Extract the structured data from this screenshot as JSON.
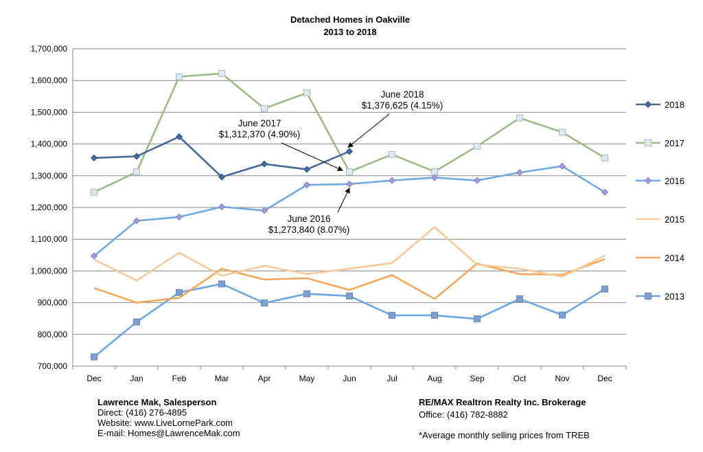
{
  "chart_data": {
    "type": "line",
    "title": "Detached Homes in Oakville",
    "subtitle": "2013 to 2018",
    "xlabel": "",
    "ylabel": "",
    "categories": [
      "Dec",
      "Jan",
      "Feb",
      "Mar",
      "Apr",
      "May",
      "Jun",
      "Jul",
      "Aug",
      "Sep",
      "Oct",
      "Nov",
      "Dec"
    ],
    "ylim": [
      700000,
      1700000
    ],
    "yticks": [
      700000,
      800000,
      900000,
      1000000,
      1100000,
      1200000,
      1300000,
      1400000,
      1500000,
      1600000,
      1700000
    ],
    "ytick_labels": [
      "700,000",
      "800,000",
      "900,000",
      "1,000,000",
      "1,100,000",
      "1,200,000",
      "1,300,000",
      "1,400,000",
      "1,500,000",
      "1,600,000",
      "1,700,000"
    ],
    "grid": "horizontal",
    "legend_position": "right",
    "series": [
      {
        "name": "2018",
        "color": "#44699a",
        "marker": "diamond",
        "values": [
          1356000,
          1361000,
          1423000,
          1296000,
          1337000,
          1320000,
          1376625,
          null,
          null,
          null,
          null,
          null,
          null
        ]
      },
      {
        "name": "2017",
        "color": "#9bbb84",
        "marker": "square-light",
        "values": [
          1248000,
          1312000,
          1612000,
          1622000,
          1512000,
          1561000,
          1312370,
          1367000,
          1313000,
          1393000,
          1482000,
          1437000,
          1356000
        ]
      },
      {
        "name": "2016",
        "color": "#6fa9e4",
        "marker": "diamond-lavender",
        "values": [
          1047000,
          1158000,
          1170000,
          1202000,
          1190000,
          1271000,
          1273840,
          1285000,
          1294000,
          1285000,
          1310000,
          1330000,
          1248000
        ]
      },
      {
        "name": "2015",
        "color": "#f8c99a",
        "marker": "none",
        "values": [
          1036000,
          970000,
          1057000,
          985000,
          1016000,
          990000,
          1007000,
          1025000,
          1138000,
          1020000,
          1007000,
          982000,
          1048000
        ]
      },
      {
        "name": "2014",
        "color": "#f6a75a",
        "marker": "none",
        "values": [
          946000,
          900000,
          915000,
          1007000,
          973000,
          977000,
          940000,
          987000,
          912000,
          1023000,
          990000,
          988000,
          1037000
        ]
      },
      {
        "name": "2013",
        "color": "#6aa6e2",
        "marker": "square",
        "values": [
          729000,
          839000,
          932000,
          959000,
          899000,
          928000,
          921000,
          860000,
          860000,
          849000,
          912000,
          861000,
          943000
        ]
      }
    ],
    "annotations": [
      {
        "line1": "June 2018",
        "line2": "$1,376,625 (4.15%)",
        "series": "2018",
        "category_index": 6
      },
      {
        "line1": "June 2017",
        "line2": "$1,312,370 (4.90%)",
        "series": "2017",
        "category_index": 6
      },
      {
        "line1": "June 2016",
        "line2": "$1,273,840 (8.07%)",
        "series": "2016",
        "category_index": 6
      }
    ]
  },
  "footer": {
    "agent_name": "Lawrence Mak, Salesperson",
    "direct": "Direct:  (416) 276-4895",
    "website": "Website:  www.LiveLornePark.com",
    "email": "E-mail:  Homes@LawrenceMak.com",
    "brokerage": "RE/MAX Realtron Realty Inc. Brokerage",
    "office": "Office: (416) 782-8882",
    "note": "*Average monthly selling prices from TREB"
  }
}
